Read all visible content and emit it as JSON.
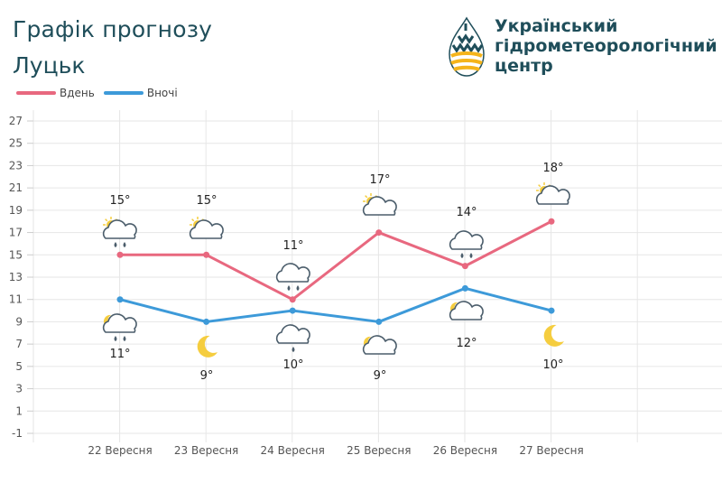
{
  "header": {
    "title": "Графік прогнозу",
    "city": "Луцьк"
  },
  "org": {
    "line1": "Український",
    "line2": "гідрометеорологічний",
    "line3": "центр",
    "logo_icon": "ukrhydromet-logo-icon"
  },
  "colors": {
    "day": "#e8687f",
    "night": "#3d9ad9",
    "text": "#1f4e5a",
    "grid": "#e6e6e6",
    "cloud_stroke": "#4b5d6b",
    "sun": "#f5cd3f"
  },
  "chart_data": {
    "type": "line",
    "categories": [
      "22 Вересня",
      "23 Вересня",
      "24 Вересня",
      "25 Вересня",
      "26 Вересня",
      "27 Вересня"
    ],
    "series": [
      {
        "name": "Вдень",
        "values": [
          15,
          15,
          11,
          17,
          14,
          18
        ],
        "labels": [
          "15°",
          "15°",
          "11°",
          "17°",
          "14°",
          "18°"
        ],
        "icons": [
          "sun-cloud-rain",
          "sun-cloud",
          "cloud-rain",
          "sun-cloud",
          "cloud-rain",
          "sun-cloud"
        ]
      },
      {
        "name": "Вночі",
        "values": [
          11,
          9,
          10,
          9,
          12,
          10
        ],
        "labels": [
          "11°",
          "9°",
          "10°",
          "9°",
          "12°",
          "10°"
        ],
        "icons": [
          "moon-cloud-rain",
          "moon",
          "cloud-light-rain",
          "moon-cloud",
          "moon-cloud",
          "moon"
        ]
      }
    ],
    "yticks": [
      -1,
      1,
      3,
      5,
      7,
      9,
      11,
      13,
      15,
      17,
      19,
      21,
      23,
      25,
      27
    ],
    "ylim": [
      -1,
      27
    ],
    "legend": "top-left",
    "grid": true
  }
}
